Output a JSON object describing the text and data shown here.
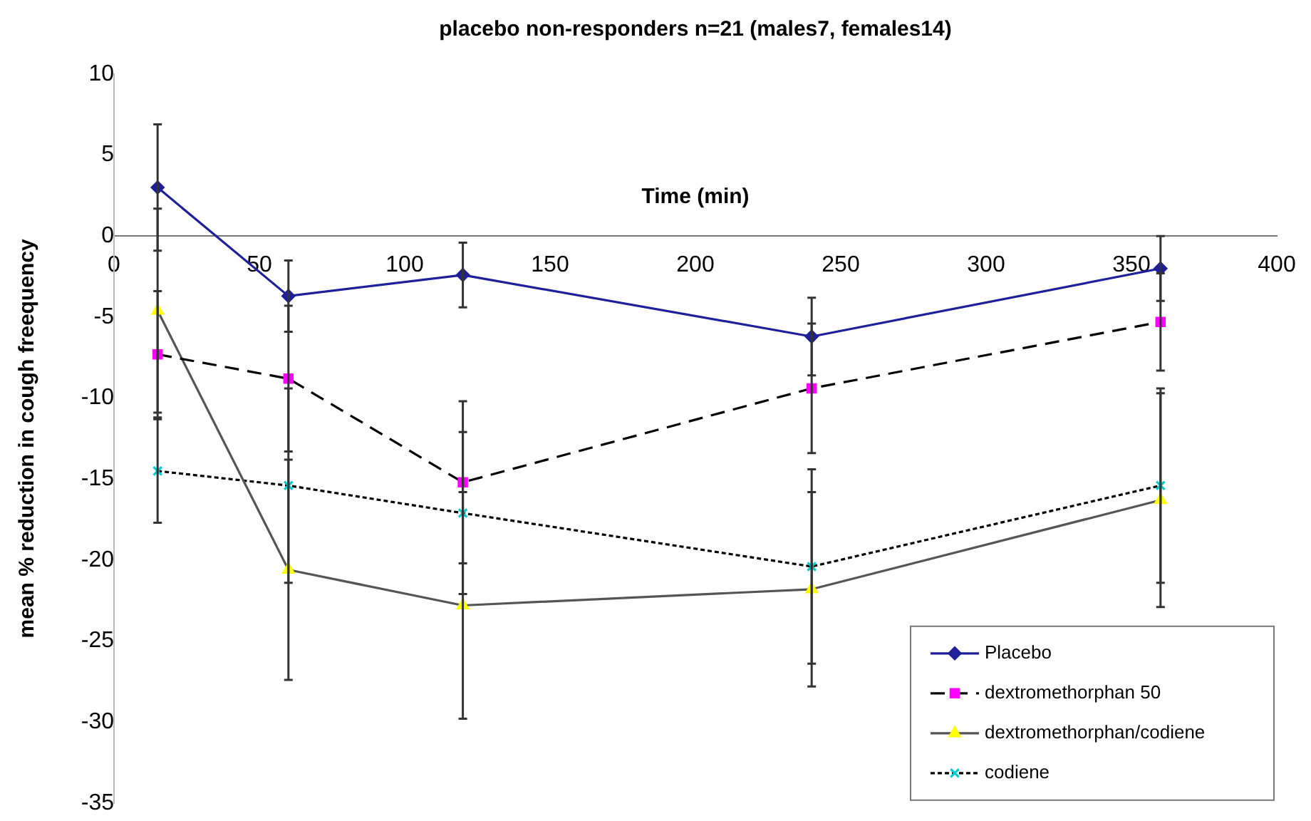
{
  "chart_data": {
    "type": "line",
    "title": "placebo non-responders n=21 (males7, females14)",
    "xlabel": "Time (min)",
    "ylabel": "mean % reduction in cough freequency",
    "x": [
      15,
      60,
      120,
      240,
      360
    ],
    "series": [
      {
        "name": "Placebo",
        "color": "#1f1f9a",
        "colors": [
          "#1f1f9a",
          "#1f1f9a",
          "#1f1f9a",
          "#1f1f9a",
          "#1f1f9a"
        ],
        "marker": "diamond",
        "line_style": "solid",
        "values": [
          3.0,
          -3.7,
          -2.4,
          -6.2,
          -2.0
        ],
        "errors": [
          3.9,
          2.2,
          2.0,
          2.4,
          2.0
        ]
      },
      {
        "name": "dextromethorphan 50",
        "color": "#000000",
        "colors": [
          "#ff00ff",
          "#ff00ff",
          "#ff00ff",
          "#ff00ff",
          "#ff00ff"
        ],
        "marker": "square",
        "line_style": "dashed",
        "values": [
          -7.3,
          -8.8,
          -15.2,
          -9.4,
          -5.3
        ],
        "errors": [
          3.9,
          4.5,
          5.0,
          4.0,
          3.0
        ]
      },
      {
        "name": "dextromethorphan/codiene",
        "color": "#555555",
        "colors": [
          "#ffff00",
          "#ffff00",
          "#ffff00",
          "#ffff00",
          "#ffff00"
        ],
        "marker": "triangle",
        "line_style": "solid",
        "values": [
          -4.6,
          -20.6,
          -22.8,
          -21.8,
          -16.3
        ],
        "errors": [
          6.3,
          6.8,
          7.0,
          6.0,
          6.6
        ]
      },
      {
        "name": "codiene",
        "color": "#000000",
        "colors": [
          "#00cccc",
          "#00cccc",
          "#00cccc",
          "#00cccc",
          "#00cccc"
        ],
        "marker": "cross",
        "line_style": "dotted",
        "values": [
          -14.5,
          -15.4,
          -17.1,
          -20.4,
          -15.4
        ],
        "errors": [
          3.2,
          6.0,
          5.0,
          6.0,
          6.0
        ]
      }
    ],
    "xlim": [
      0,
      400
    ],
    "xticks": [
      0,
      50,
      100,
      150,
      200,
      250,
      300,
      350,
      400
    ],
    "ylim": [
      -35,
      10
    ],
    "yticks": [
      -35,
      -30,
      -25,
      -20,
      -15,
      -10,
      -5,
      0,
      5,
      10
    ],
    "grid": false,
    "legend": "bottom right"
  }
}
